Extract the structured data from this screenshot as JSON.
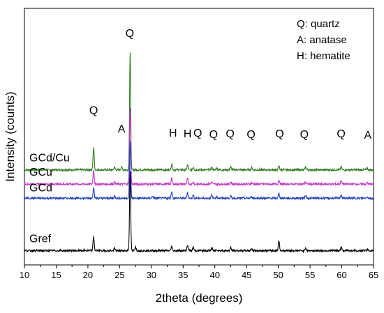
{
  "chart_data": {
    "type": "line",
    "xlabel": "2theta (degrees)",
    "ylabel": "Intensity (counts)",
    "xlim": [
      10,
      65
    ],
    "x_ticks": [
      "10",
      "15",
      "20",
      "25",
      "30",
      "35",
      "40",
      "45",
      "50",
      "55",
      "60",
      "65"
    ],
    "y_ticks_shown": false,
    "legend_placement": "top-right",
    "legend": [
      "Q: quartz",
      "A: anatase",
      "H: hematite"
    ],
    "series": [
      {
        "name": "GCd/Cu",
        "color": "#2e7d1e",
        "baseline": 0.667,
        "peaks": [
          [
            20.9,
            0.16
          ],
          [
            24.2,
            0.018
          ],
          [
            25.3,
            0.02
          ],
          [
            26.65,
            0.82
          ],
          [
            33.2,
            0.04
          ],
          [
            35.7,
            0.035
          ],
          [
            36.6,
            0.02
          ],
          [
            39.5,
            0.018
          ],
          [
            40.3,
            0.012
          ],
          [
            42.5,
            0.02
          ],
          [
            45.8,
            0.015
          ],
          [
            50.1,
            0.025
          ],
          [
            54.3,
            0.02
          ],
          [
            59.9,
            0.022
          ],
          [
            64.0,
            0.012
          ]
        ]
      },
      {
        "name": "GCu",
        "color": "#cc33cc",
        "baseline": 0.567,
        "peaks": [
          [
            20.9,
            0.1
          ],
          [
            24.2,
            0.015
          ],
          [
            26.65,
            0.54
          ],
          [
            33.2,
            0.04
          ],
          [
            35.7,
            0.035
          ],
          [
            36.6,
            0.015
          ],
          [
            39.5,
            0.015
          ],
          [
            42.5,
            0.015
          ],
          [
            45.8,
            0.01
          ],
          [
            50.1,
            0.03
          ],
          [
            54.3,
            0.015
          ],
          [
            59.9,
            0.025
          ],
          [
            64.0,
            0.01
          ]
        ]
      },
      {
        "name": "GCd",
        "color": "#1f3fd6",
        "baseline": 0.468,
        "peaks": [
          [
            20.9,
            0.08
          ],
          [
            24.2,
            0.015
          ],
          [
            26.65,
            0.4
          ],
          [
            30.2,
            0.015
          ],
          [
            33.2,
            0.045
          ],
          [
            35.7,
            0.04
          ],
          [
            36.6,
            0.02
          ],
          [
            39.5,
            0.02
          ],
          [
            40.3,
            0.012
          ],
          [
            42.5,
            0.015
          ],
          [
            45.8,
            0.012
          ],
          [
            50.1,
            0.035
          ],
          [
            54.3,
            0.02
          ],
          [
            59.9,
            0.025
          ],
          [
            64.0,
            0.01
          ]
        ]
      },
      {
        "name": "Gref",
        "color": "#000000",
        "baseline": 0.1,
        "peaks": [
          [
            20.9,
            0.1
          ],
          [
            24.2,
            0.015
          ],
          [
            26.65,
            0.55
          ],
          [
            27.5,
            0.03
          ],
          [
            33.2,
            0.03
          ],
          [
            35.7,
            0.04
          ],
          [
            36.6,
            0.025
          ],
          [
            39.5,
            0.02
          ],
          [
            40.3,
            0.01
          ],
          [
            42.5,
            0.02
          ],
          [
            45.8,
            0.015
          ],
          [
            50.1,
            0.07
          ],
          [
            54.3,
            0.02
          ],
          [
            59.9,
            0.025
          ],
          [
            64.0,
            0.01
          ]
        ]
      }
    ],
    "annotations": [
      {
        "text": "Q",
        "x": 26.6,
        "y": 1.6
      },
      {
        "text": "Q",
        "x": 20.9,
        "y": 1.06
      },
      {
        "text": "A",
        "x": 25.3,
        "y": 0.93
      },
      {
        "text": "H",
        "x": 33.4,
        "y": 0.9
      },
      {
        "text": "H",
        "x": 35.7,
        "y": 0.895
      },
      {
        "text": "Q",
        "x": 37.3,
        "y": 0.9
      },
      {
        "text": "Q",
        "x": 39.8,
        "y": 0.89
      },
      {
        "text": "Q",
        "x": 42.4,
        "y": 0.895
      },
      {
        "text": "Q",
        "x": 45.7,
        "y": 0.89
      },
      {
        "text": "Q",
        "x": 50.2,
        "y": 0.895
      },
      {
        "text": "Q",
        "x": 54.1,
        "y": 0.89
      },
      {
        "text": "Q",
        "x": 59.9,
        "y": 0.895
      },
      {
        "text": "A",
        "x": 64.1,
        "y": 0.885
      }
    ]
  }
}
